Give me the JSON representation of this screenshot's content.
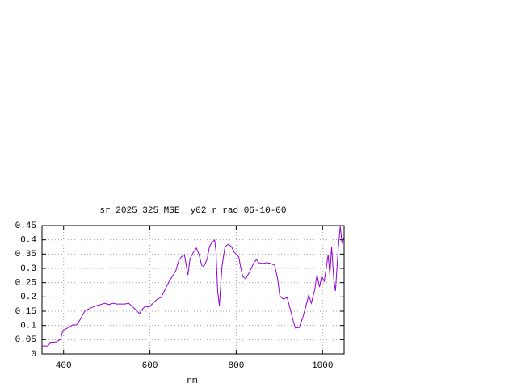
{
  "chart_data": {
    "type": "line",
    "title": "sr_2025_325_MSE__y02_r_rad 06-10-00",
    "x_label": "nm",
    "xlim": [
      350,
      1050
    ],
    "xticks": [
      400,
      600,
      800,
      1000
    ],
    "ylim": [
      0,
      0.45
    ],
    "yticks": [
      0,
      0.05,
      0.1,
      0.15,
      0.2,
      0.25,
      0.3,
      0.35,
      0.4,
      0.45
    ],
    "grid": true,
    "series": [
      {
        "color": "#9400d3",
        "x": [
          350,
          364,
          368,
          383,
          393,
          398,
          411,
          421,
          430,
          439,
          449,
          458,
          467,
          477,
          486,
          495,
          505,
          514,
          523,
          533,
          542,
          551,
          561,
          570,
          576,
          583,
          589,
          598,
          607,
          617,
          626,
          635,
          645,
          654,
          660,
          667,
          673,
          680,
          688,
          693,
          701,
          708,
          714,
          720,
          725,
          733,
          738,
          744,
          750,
          753,
          757,
          761,
          767,
          774,
          782,
          789,
          795,
          801,
          806,
          810,
          815,
          822,
          832,
          841,
          847,
          852,
          861,
          871,
          880,
          889,
          896,
          901,
          909,
          918,
          923,
          931,
          937,
          946,
          954,
          961,
          968,
          974,
          982,
          987,
          993,
          998,
          1004,
          1009,
          1013,
          1017,
          1021,
          1026,
          1030,
          1036,
          1041,
          1045,
          1049
        ],
        "values": [
          0.028,
          0.028,
          0.04,
          0.042,
          0.051,
          0.082,
          0.093,
          0.102,
          0.102,
          0.122,
          0.15,
          0.158,
          0.164,
          0.17,
          0.173,
          0.178,
          0.173,
          0.178,
          0.175,
          0.175,
          0.175,
          0.178,
          0.164,
          0.15,
          0.142,
          0.158,
          0.167,
          0.164,
          0.178,
          0.192,
          0.198,
          0.226,
          0.255,
          0.277,
          0.291,
          0.328,
          0.34,
          0.348,
          0.277,
          0.334,
          0.357,
          0.371,
          0.348,
          0.311,
          0.306,
          0.334,
          0.376,
          0.391,
          0.399,
          0.362,
          0.221,
          0.17,
          0.306,
          0.376,
          0.385,
          0.376,
          0.357,
          0.348,
          0.34,
          0.306,
          0.272,
          0.263,
          0.291,
          0.32,
          0.331,
          0.32,
          0.317,
          0.32,
          0.317,
          0.311,
          0.263,
          0.204,
          0.192,
          0.198,
          0.17,
          0.122,
          0.091,
          0.093,
          0.127,
          0.164,
          0.207,
          0.178,
          0.226,
          0.277,
          0.235,
          0.272,
          0.255,
          0.306,
          0.348,
          0.277,
          0.376,
          0.263,
          0.221,
          0.362,
          0.447,
          0.391,
          0.405
        ]
      }
    ]
  }
}
